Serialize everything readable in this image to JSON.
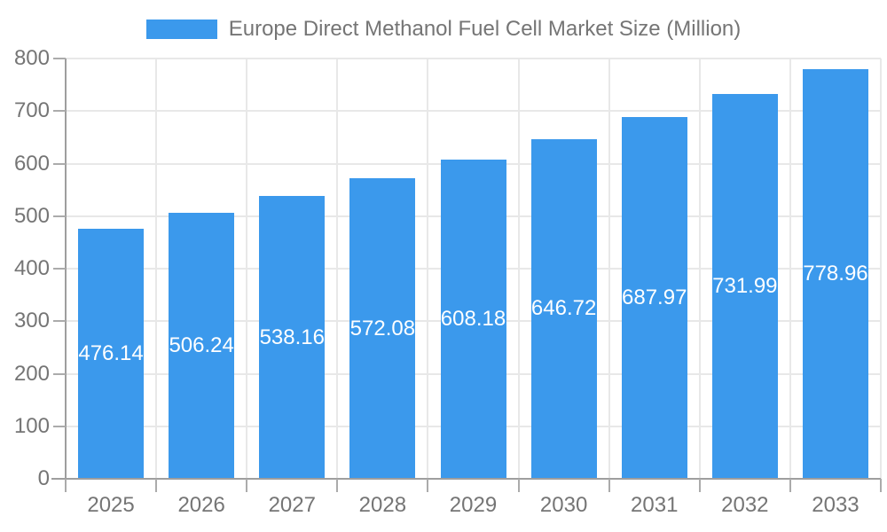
{
  "legend": {
    "items": [
      {
        "label": "Europe Direct Methanol Fuel Cell Market Size (Million)",
        "color": "#3B99EC"
      }
    ]
  },
  "chart_data": {
    "type": "bar",
    "title": "Europe Direct Methanol Fuel Cell Market Size (Million)",
    "categories": [
      "2025",
      "2026",
      "2027",
      "2028",
      "2029",
      "2030",
      "2031",
      "2032",
      "2033"
    ],
    "values": [
      476.14,
      506.24,
      538.16,
      572.08,
      608.18,
      646.72,
      687.97,
      731.99,
      778.96
    ],
    "value_labels": [
      "476.14",
      "506.24",
      "538.16",
      "572.08",
      "608.18",
      "646.72",
      "687.97",
      "731.99",
      "778.96"
    ],
    "xlabel": "",
    "ylabel": "",
    "ylim": [
      0,
      800
    ],
    "y_ticks": [
      0,
      100,
      200,
      300,
      400,
      500,
      600,
      700,
      800
    ],
    "grid": true,
    "legend_position": "top",
    "bar_label_position": "inside-center"
  },
  "colors": {
    "bar": "#3B99EC",
    "grid": "#E8E8E8",
    "axis": "#9E9E9E",
    "tick": "#ABABAB",
    "tick_text": "#757575",
    "bar_label_text": "#FFFFFF",
    "background": "#FFFFFF"
  }
}
